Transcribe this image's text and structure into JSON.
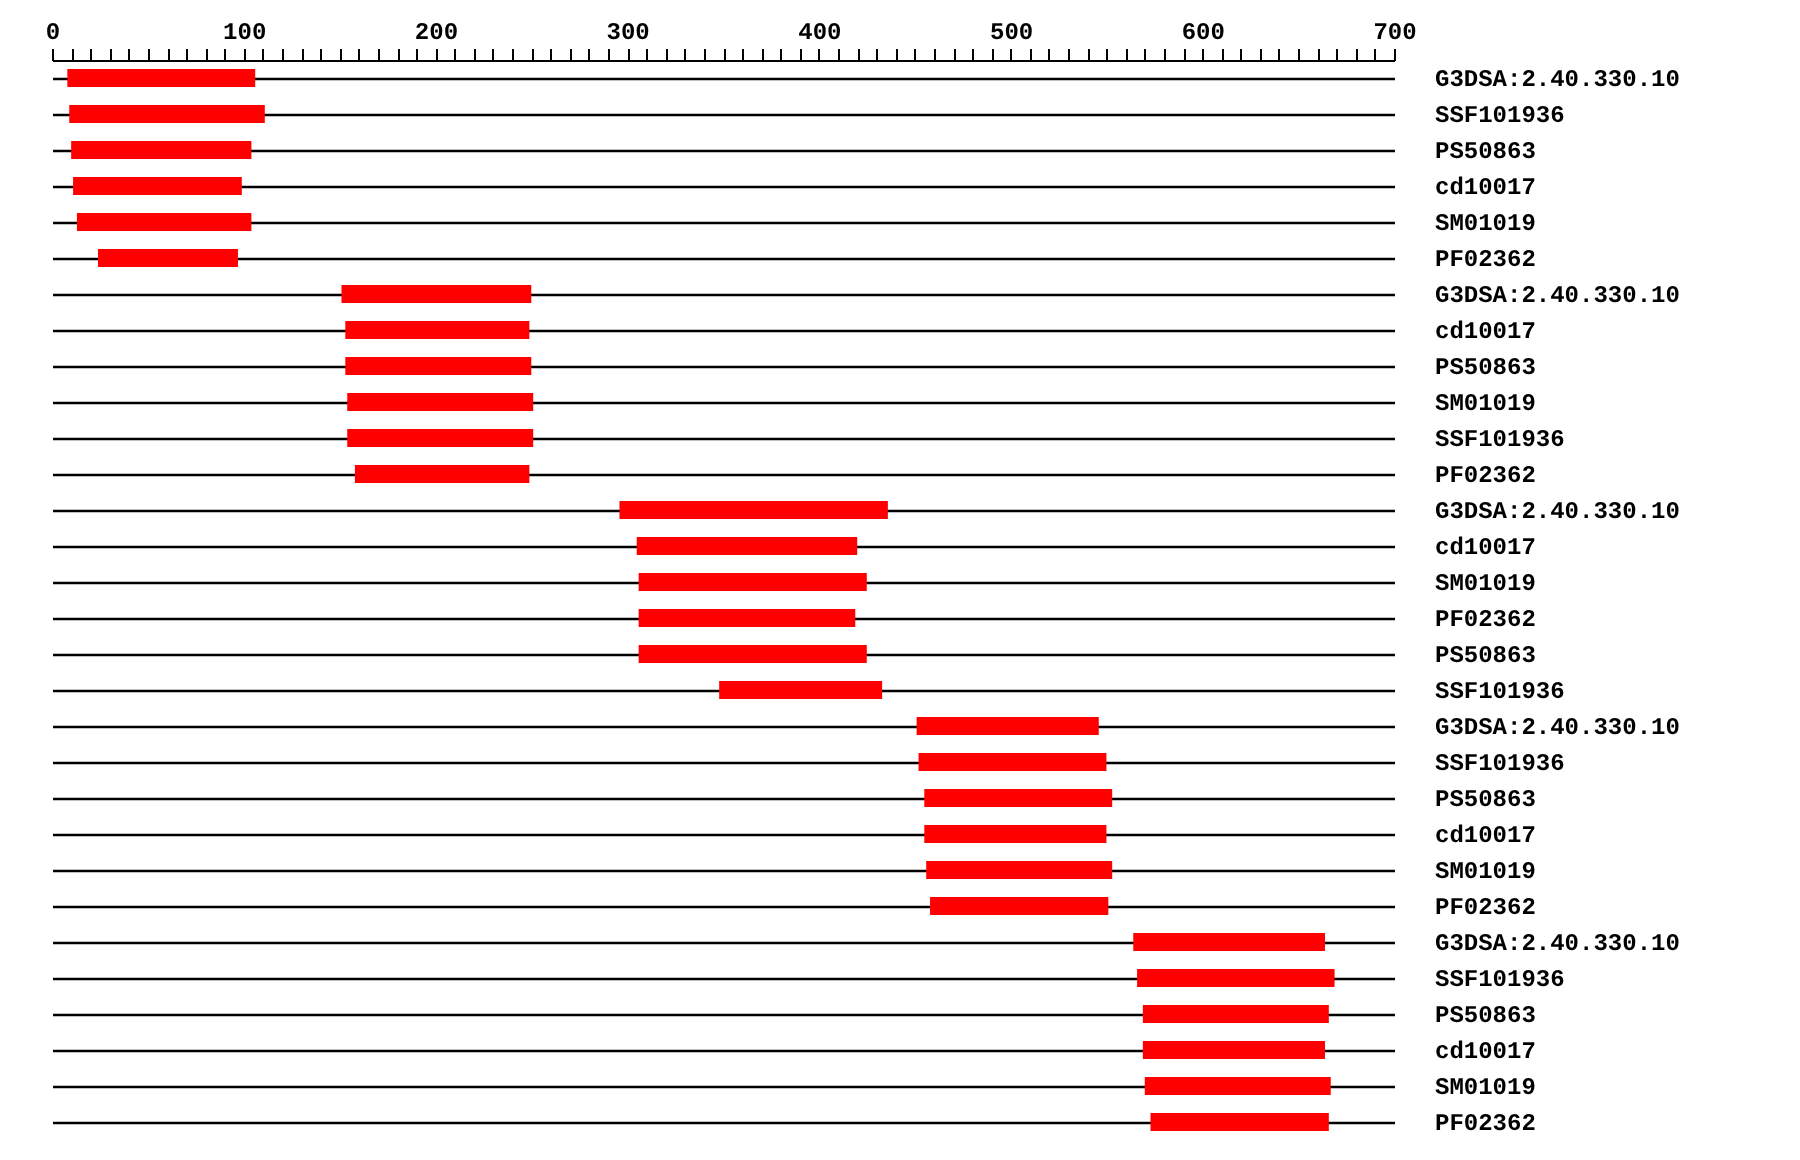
{
  "chart_data": {
    "type": "bar",
    "orientation": "horizontal",
    "grid": "y",
    "color": "#ff0000",
    "categories": [
      "G3DSA:2.40.330.10",
      "SSF101936",
      "PS50863",
      "cd10017",
      "SM01019",
      "PF02362",
      "G3DSA:2.40.330.10",
      "cd10017",
      "PS50863",
      "SM01019",
      "SSF101936",
      "PF02362",
      "G3DSA:2.40.330.10",
      "cd10017",
      "SM01019",
      "PF02362",
      "PS50863",
      "SSF101936",
      "G3DSA:2.40.330.10",
      "SSF101936",
      "PS50863",
      "cd10017",
      "SM01019",
      "PF02362",
      "G3DSA:2.40.330.10",
      "SSF101936",
      "PS50863",
      "cd10017",
      "SM01019",
      "PF02362"
    ],
    "base": [
      8,
      9,
      10,
      11,
      13,
      24,
      151,
      153,
      153,
      154,
      154,
      158,
      296,
      305,
      306,
      306,
      306,
      348,
      451,
      452,
      455,
      455,
      456,
      458,
      564,
      566,
      569,
      569,
      570,
      573
    ],
    "values": [
      98,
      102,
      94,
      88,
      91,
      73,
      99,
      96,
      97,
      97,
      97,
      91,
      140,
      115,
      119,
      113,
      119,
      85,
      95,
      98,
      98,
      95,
      97,
      93,
      100,
      103,
      97,
      95,
      97,
      93
    ],
    "xlim": [
      0,
      700
    ],
    "xticks": [
      0,
      {
        "value": 10,
        "label": null
      },
      {
        "value": 20,
        "label": null
      },
      {
        "value": 30,
        "label": null
      },
      {
        "value": 40,
        "label": null
      },
      {
        "value": 50,
        "label": null
      },
      {
        "value": 60,
        "label": null
      },
      {
        "value": 70,
        "label": null
      },
      {
        "value": 80,
        "label": null
      },
      {
        "value": 90,
        "label": null
      },
      100,
      {
        "value": 110,
        "label": null
      },
      {
        "value": 120,
        "label": null
      },
      {
        "value": 130,
        "label": null
      },
      {
        "value": 140,
        "label": null
      },
      {
        "value": 150,
        "label": null
      },
      {
        "value": 160,
        "label": null
      },
      {
        "value": 170,
        "label": null
      },
      {
        "value": 180,
        "label": null
      },
      {
        "value": 190,
        "label": null
      },
      200,
      {
        "value": 210,
        "label": null
      },
      {
        "value": 220,
        "label": null
      },
      {
        "value": 230,
        "label": null
      },
      {
        "value": 240,
        "label": null
      },
      {
        "value": 250,
        "label": null
      },
      {
        "value": 260,
        "label": null
      },
      {
        "value": 270,
        "label": null
      },
      {
        "value": 280,
        "label": null
      },
      {
        "value": 290,
        "label": null
      },
      300,
      {
        "value": 310,
        "label": null
      },
      {
        "value": 320,
        "label": null
      },
      {
        "value": 330,
        "label": null
      },
      {
        "value": 340,
        "label": null
      },
      {
        "value": 350,
        "label": null
      },
      {
        "value": 360,
        "label": null
      },
      {
        "value": 370,
        "label": null
      },
      {
        "value": 380,
        "label": null
      },
      {
        "value": 390,
        "label": null
      },
      400,
      {
        "value": 410,
        "label": null
      },
      {
        "value": 420,
        "label": null
      },
      {
        "value": 430,
        "label": null
      },
      {
        "value": 440,
        "label": null
      },
      {
        "value": 450,
        "label": null
      },
      {
        "value": 460,
        "label": null
      },
      {
        "value": 470,
        "label": null
      },
      {
        "value": 480,
        "label": null
      },
      {
        "value": 490,
        "label": null
      },
      500,
      {
        "value": 510,
        "label": null
      },
      {
        "value": 520,
        "label": null
      },
      {
        "value": 530,
        "label": null
      },
      {
        "value": 540,
        "label": null
      },
      {
        "value": 550,
        "label": null
      },
      {
        "value": 560,
        "label": null
      },
      {
        "value": 570,
        "label": null
      },
      {
        "value": 580,
        "label": null
      },
      {
        "value": 590,
        "label": null
      },
      600,
      {
        "value": 610,
        "label": null
      },
      {
        "value": 620,
        "label": null
      },
      {
        "value": 630,
        "label": null
      },
      {
        "value": 640,
        "label": null
      },
      {
        "value": 650,
        "label": null
      },
      {
        "value": 660,
        "label": null
      },
      {
        "value": 670,
        "label": null
      },
      {
        "value": 680,
        "label": null
      },
      {
        "value": 690,
        "label": null
      },
      700
    ]
  }
}
